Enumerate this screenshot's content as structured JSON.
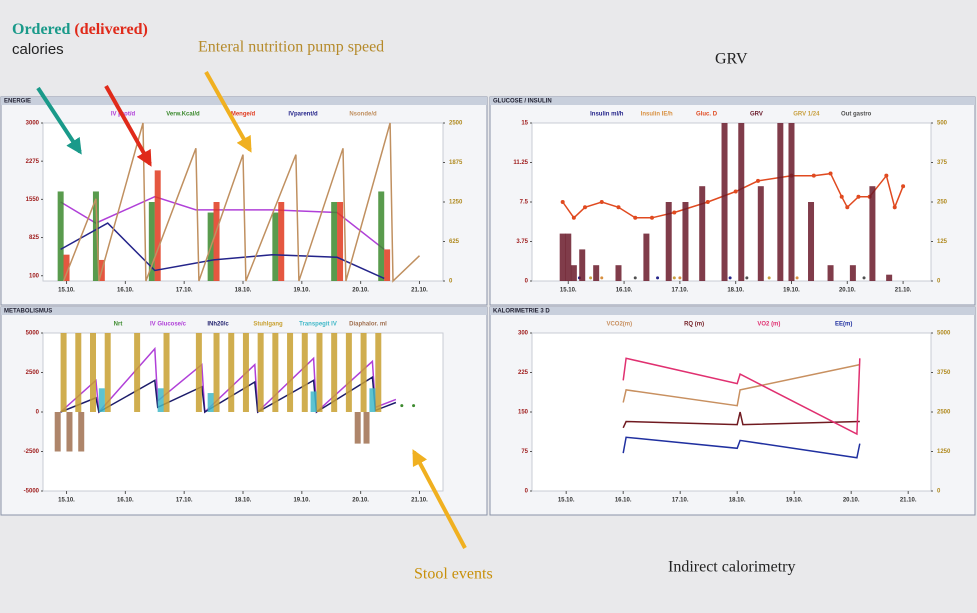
{
  "annotations": {
    "ordered": "Ordered",
    "delivered": "(delivered)",
    "calories": "calories",
    "pump": "Enteral nutrition pump speed",
    "grv": "GRV",
    "stool": "Stool events",
    "calorimetry": "Indirect calorimetry"
  },
  "chart_data": [
    {
      "type": "combo",
      "title": "ENERGIE",
      "xlim": [
        14.6,
        21.4
      ],
      "xticks": [
        {
          "value": 15,
          "label": "15.10."
        },
        {
          "value": 16,
          "label": "16.10."
        },
        {
          "value": 17,
          "label": "17.10."
        },
        {
          "value": 18,
          "label": "18.10."
        },
        {
          "value": 19,
          "label": "19.10."
        },
        {
          "value": 20,
          "label": "20.10."
        },
        {
          "value": 21,
          "label": "21.10."
        }
      ],
      "ylim": [
        0,
        3000
      ],
      "yticks": [
        100,
        825,
        1550,
        2275,
        3000
      ],
      "y2lim": [
        0,
        2500
      ],
      "y2ticks": [
        0,
        625,
        1250,
        1875,
        2500
      ],
      "series": [
        {
          "name": "IV prot/d",
          "color": "#b040d8",
          "kind": "line",
          "x": [
            14.9,
            15.5,
            16.5,
            17.2,
            18.5,
            19.6,
            20.4
          ],
          "values": [
            1500,
            1100,
            1600,
            1350,
            1350,
            1300,
            600
          ]
        },
        {
          "name": "Verw.Kcal/d",
          "color": "#3c8a2e",
          "kind": "bar",
          "x": [
            14.9,
            15.5,
            16.45,
            17.45,
            18.55,
            19.55,
            20.35
          ],
          "values": [
            1700,
            1700,
            1500,
            1300,
            1300,
            1500,
            1700
          ]
        },
        {
          "name": "Menge/d",
          "color": "#e03a1e",
          "kind": "bar",
          "x": [
            15.0,
            15.6,
            16.55,
            17.55,
            18.65,
            19.65,
            20.45
          ],
          "values": [
            500,
            400,
            2100,
            1500,
            1500,
            1500,
            600
          ]
        },
        {
          "name": "IVparent/d",
          "color": "#24248a",
          "kind": "line",
          "x": [
            14.9,
            15.7,
            16.5,
            17.5,
            18.5,
            19.6,
            20.4
          ],
          "values": [
            600,
            1100,
            200,
            400,
            500,
            450,
            50
          ]
        },
        {
          "name": "Nsonde/d",
          "color": "#c09060",
          "kind": "line",
          "axis": "y2",
          "x": [
            14.95,
            15.5,
            15.55,
            16.3,
            16.35,
            17.2,
            17.25,
            18.0,
            18.05,
            18.9,
            18.95,
            19.7,
            19.75,
            20.5,
            20.55,
            21.0
          ],
          "values": [
            0,
            1300,
            0,
            2500,
            0,
            2100,
            0,
            2000,
            0,
            2000,
            0,
            2100,
            0,
            2500,
            0,
            400
          ]
        }
      ]
    },
    {
      "type": "combo",
      "title": "GLUCOSE / INSULIN",
      "xlim": [
        14.35,
        21.5
      ],
      "xticks": [
        {
          "value": 15,
          "label": "15.10."
        },
        {
          "value": 16,
          "label": "16.10."
        },
        {
          "value": 17,
          "label": "17.10."
        },
        {
          "value": 18,
          "label": "18.10."
        },
        {
          "value": 19,
          "label": "19.10."
        },
        {
          "value": 20,
          "label": "20.10."
        },
        {
          "value": 21,
          "label": "21.10."
        }
      ],
      "ylim": [
        0,
        15
      ],
      "yticks": [
        0,
        3.75,
        7.5,
        11.25,
        15
      ],
      "y2lim": [
        0,
        500
      ],
      "y2ticks": [
        0,
        125,
        250,
        375,
        500
      ],
      "series": [
        {
          "name": "Insulin ml/h",
          "color": "#24248a",
          "kind": "dot",
          "x": [
            15.2,
            16.6,
            17.9
          ],
          "values": [
            0.3,
            0.3,
            0.3
          ]
        },
        {
          "name": "Insulin IE/h",
          "color": "#d89040",
          "kind": "dot",
          "x": [
            15.6,
            17.0,
            19.1
          ],
          "values": [
            0.3,
            0.3,
            0.3
          ]
        },
        {
          "name": "Gluc. D",
          "color": "#e04a20",
          "kind": "line",
          "x": [
            14.9,
            15.1,
            15.3,
            15.6,
            15.9,
            16.2,
            16.5,
            16.9,
            17.5,
            18.0,
            18.4,
            19.0,
            19.4,
            19.7,
            19.9,
            20.0,
            20.2,
            20.4,
            20.7,
            20.85,
            21.0
          ],
          "values": [
            7.5,
            6,
            7,
            7.5,
            7,
            6,
            6,
            6.5,
            7.5,
            8.5,
            9.5,
            10,
            10,
            10.2,
            8,
            7,
            8,
            8,
            10,
            7,
            9
          ]
        },
        {
          "name": "GRV",
          "color": "#6a1a2a",
          "kind": "bar",
          "axis": "y2",
          "x": [
            14.9,
            15.0,
            15.1,
            15.25,
            15.5,
            15.9,
            16.4,
            16.8,
            17.1,
            17.4,
            17.8,
            18.1,
            18.45,
            18.8,
            19.0,
            19.35,
            19.7,
            20.1,
            20.45,
            20.75
          ],
          "values": [
            150,
            150,
            50,
            100,
            50,
            50,
            150,
            250,
            250,
            300,
            500,
            500,
            300,
            500,
            500,
            250,
            50,
            50,
            300,
            20
          ]
        },
        {
          "name": "GRV 1/24",
          "color": "#c8a040",
          "kind": "dot",
          "axis": "y2",
          "x": [
            15.4,
            16.9,
            18.6
          ],
          "values": [
            10,
            10,
            10
          ]
        },
        {
          "name": "Out gastro",
          "color": "#505050",
          "kind": "dot",
          "axis": "y2",
          "x": [
            16.2,
            18.2,
            20.3
          ],
          "values": [
            10,
            10,
            10
          ]
        }
      ]
    },
    {
      "type": "combo",
      "title": "METABOLISMUS",
      "xlim": [
        14.6,
        21.4
      ],
      "xticks": [
        {
          "value": 15,
          "label": "15.10."
        },
        {
          "value": 16,
          "label": "16.10."
        },
        {
          "value": 17,
          "label": "17.10."
        },
        {
          "value": 18,
          "label": "18.10."
        },
        {
          "value": 19,
          "label": "19.10."
        },
        {
          "value": 20,
          "label": "20.10."
        },
        {
          "value": 21,
          "label": "21.10."
        }
      ],
      "ylim": [
        -5000,
        5000
      ],
      "yticks": [
        -5000,
        -2500,
        0,
        2500,
        5000
      ],
      "series": [
        {
          "name": "Nrt",
          "color": "#3c8a2e",
          "kind": "dot",
          "x": [
            20.7,
            20.9
          ],
          "values": [
            400,
            400
          ]
        },
        {
          "name": "IV Glucose/c",
          "color": "#b040d8",
          "kind": "line",
          "x": [
            14.9,
            15.5,
            15.55,
            16.5,
            16.55,
            17.3,
            17.35,
            18.2,
            18.25,
            19.2,
            19.25,
            20.2,
            20.25,
            20.6
          ],
          "values": [
            0,
            2000,
            0,
            4000,
            700,
            3000,
            0,
            3000,
            0,
            3400,
            0,
            3200,
            300,
            800
          ]
        },
        {
          "name": "INh20/c",
          "color": "#1c1c6a",
          "kind": "line",
          "x": [
            14.9,
            15.5,
            15.55,
            16.5,
            16.55,
            17.3,
            17.35,
            18.2,
            18.25,
            19.2,
            19.25,
            20.2,
            20.25,
            20.6
          ],
          "values": [
            0,
            900,
            0,
            2000,
            300,
            1600,
            0,
            1900,
            0,
            2000,
            0,
            2200,
            100,
            600
          ]
        },
        {
          "name": "Stuhlgang",
          "color": "#c8a030",
          "kind": "bar",
          "x": [
            14.95,
            15.2,
            15.45,
            15.7,
            16.2,
            16.7,
            17.25,
            17.55,
            17.8,
            18.05,
            18.3,
            18.55,
            18.8,
            19.05,
            19.3,
            19.55,
            19.8,
            20.05,
            20.3
          ],
          "values": [
            5000,
            5000,
            5000,
            5000,
            5000,
            5000,
            5000,
            5000,
            5000,
            5000,
            5000,
            5000,
            5000,
            5000,
            5000,
            5000,
            5000,
            5000,
            5000
          ]
        },
        {
          "name": "Transpegit IV",
          "color": "#40b8c8",
          "kind": "bar",
          "x": [
            15.6,
            16.6,
            17.45,
            19.2,
            20.2
          ],
          "values": [
            1500,
            1500,
            1200,
            1300,
            1500
          ]
        },
        {
          "name": "Diaphalor. ml",
          "color": "#a07050",
          "kind": "bar",
          "x": [
            14.85,
            15.05,
            15.25,
            19.95,
            20.1
          ],
          "values": [
            -2500,
            -2500,
            -2500,
            -2000,
            -2000
          ]
        }
      ]
    },
    {
      "type": "combo",
      "title": "KALORIMETRIE 3 D",
      "xlim": [
        14.4,
        21.4
      ],
      "xticks": [
        {
          "value": 15,
          "label": "15.10."
        },
        {
          "value": 16,
          "label": "16.10."
        },
        {
          "value": 17,
          "label": "17.10."
        },
        {
          "value": 18,
          "label": "18.10."
        },
        {
          "value": 19,
          "label": "19.10."
        },
        {
          "value": 20,
          "label": "20.10."
        },
        {
          "value": 21,
          "label": "21.10."
        }
      ],
      "ylim": [
        0,
        300
      ],
      "yticks": [
        0,
        75,
        150,
        225,
        300
      ],
      "y2lim": [
        0,
        5000
      ],
      "y2ticks": [
        0,
        1250,
        2500,
        3750,
        5000
      ],
      "series": [
        {
          "name": "VCO2(m)",
          "color": "#c89060",
          "kind": "line",
          "axis": "y2",
          "x": [
            16.0,
            16.05,
            18.0,
            18.05,
            20.15
          ],
          "values": [
            2800,
            3200,
            2700,
            3200,
            4000
          ]
        },
        {
          "name": "RQ (m)",
          "color": "#701a20",
          "kind": "line",
          "axis": "y2",
          "x": [
            16.0,
            16.05,
            18.0,
            18.05,
            18.1,
            20.15
          ],
          "values": [
            2000,
            2200,
            2100,
            2500,
            2100,
            2200
          ]
        },
        {
          "name": "VO2 (m)",
          "color": "#e03070",
          "kind": "line",
          "axis": "y2",
          "x": [
            16.0,
            16.05,
            18.0,
            18.05,
            20.1,
            20.15
          ],
          "values": [
            3500,
            4200,
            3400,
            3700,
            1800,
            4200
          ]
        },
        {
          "name": "EE(m)",
          "color": "#2030a0",
          "kind": "line",
          "axis": "y2",
          "x": [
            16.0,
            16.05,
            18.0,
            18.05,
            20.1,
            20.15
          ],
          "values": [
            1200,
            1700,
            1350,
            1600,
            1050,
            1500
          ]
        }
      ]
    }
  ]
}
